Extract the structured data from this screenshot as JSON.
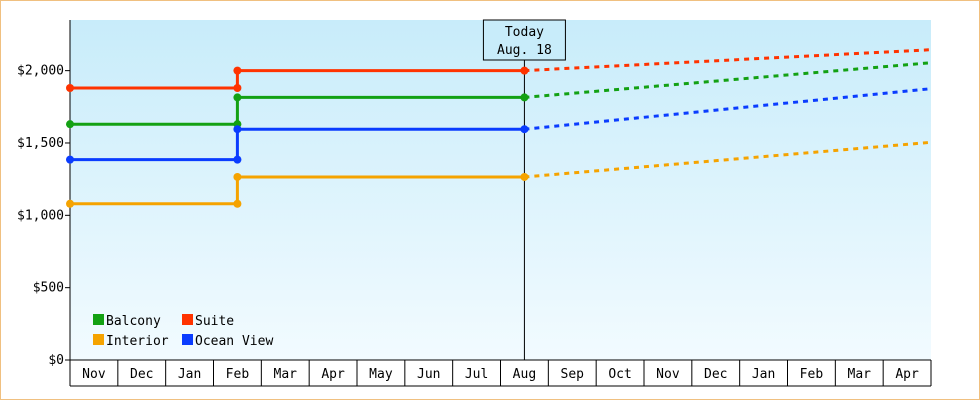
{
  "chart_data": {
    "type": "line",
    "title": "",
    "xlabel": "",
    "ylabel": "",
    "ylim": [
      0,
      2350
    ],
    "yticks": [
      0,
      500,
      1000,
      1500,
      2000
    ],
    "ytick_labels": [
      "$0",
      "$500",
      "$1,000",
      "$1,500",
      "$2,000"
    ],
    "categories": [
      "Nov",
      "Dec",
      "Jan",
      "Feb",
      "Mar",
      "Apr",
      "May",
      "Jun",
      "Jul",
      "Aug",
      "Sep",
      "Oct",
      "Nov",
      "Dec",
      "Jan",
      "Feb",
      "Mar",
      "Apr"
    ],
    "grid": false,
    "legend": "bottom-left",
    "background": {
      "top": "#c8ecfa",
      "bottom": "#f2fbff"
    },
    "today": {
      "line1": "Today",
      "line2": "Aug. 18",
      "x": 9.5
    },
    "series": [
      {
        "name": "Balcony",
        "color": "#13a113",
        "points": [
          [
            0,
            1630
          ],
          [
            3.5,
            1630
          ],
          [
            3.5,
            1815
          ],
          [
            9.5,
            1815
          ]
        ],
        "projection": [
          [
            9.5,
            1815
          ],
          [
            18,
            2055
          ]
        ]
      },
      {
        "name": "Suite",
        "color": "#ff3300",
        "points": [
          [
            0,
            1880
          ],
          [
            3.5,
            1880
          ],
          [
            3.5,
            2000
          ],
          [
            9.5,
            2000
          ]
        ],
        "projection": [
          [
            9.5,
            2000
          ],
          [
            18,
            2145
          ]
        ]
      },
      {
        "name": "Interior",
        "color": "#f5a300",
        "points": [
          [
            0,
            1080
          ],
          [
            3.5,
            1080
          ],
          [
            3.5,
            1265
          ],
          [
            9.5,
            1265
          ]
        ],
        "projection": [
          [
            9.5,
            1265
          ],
          [
            18,
            1505
          ]
        ]
      },
      {
        "name": "Ocean View",
        "color": "#0a3cff",
        "points": [
          [
            0,
            1385
          ],
          [
            3.5,
            1385
          ],
          [
            3.5,
            1595
          ],
          [
            9.5,
            1595
          ]
        ],
        "projection": [
          [
            9.5,
            1595
          ],
          [
            18,
            1875
          ]
        ]
      }
    ]
  }
}
